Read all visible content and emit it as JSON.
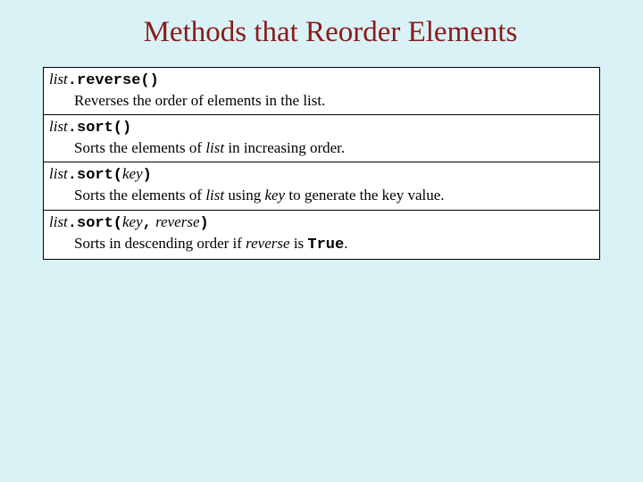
{
  "title": "Methods that Reorder Elements",
  "colors": {
    "background": "#d9f2f5",
    "title": "#8b1a1a",
    "cell_bg": "#ffffff",
    "border": "#000000",
    "text": "#000000"
  },
  "typography": {
    "title_fontsize": 33,
    "body_fontsize": 17,
    "title_font": "Times New Roman",
    "mono_font": "Courier New"
  },
  "rows": [
    {
      "sig_list": "list",
      "sig_dot": ".",
      "sig_method": "reverse()",
      "desc_pre": "Reverses the order of elements in the list.",
      "desc_italic1": "",
      "desc_mid": "",
      "desc_italic2": "",
      "desc_post": ""
    },
    {
      "sig_list": "list",
      "sig_dot": ".",
      "sig_method": "sort()",
      "desc_pre": "Sorts the elements of ",
      "desc_italic1": "list",
      "desc_mid": " in increasing order.",
      "desc_italic2": "",
      "desc_post": ""
    },
    {
      "sig_list": "list",
      "sig_dot": ".",
      "sig_method_open": "sort(",
      "sig_param1": "key",
      "sig_method_close": ")",
      "desc_pre": "Sorts the elements of ",
      "desc_italic1": "list",
      "desc_mid": " using ",
      "desc_italic2": "key",
      "desc_post": " to generate the key value."
    },
    {
      "sig_list": "list",
      "sig_dot": ".",
      "sig_method_open": "sort(",
      "sig_param1": "key",
      "sig_comma": ",",
      "sig_param2": "reverse",
      "sig_method_close": ")",
      "desc_pre": "Sorts in descending order if ",
      "desc_italic1": "reverse",
      "desc_mid": " is ",
      "desc_mono": "True",
      "desc_post": "."
    }
  ]
}
